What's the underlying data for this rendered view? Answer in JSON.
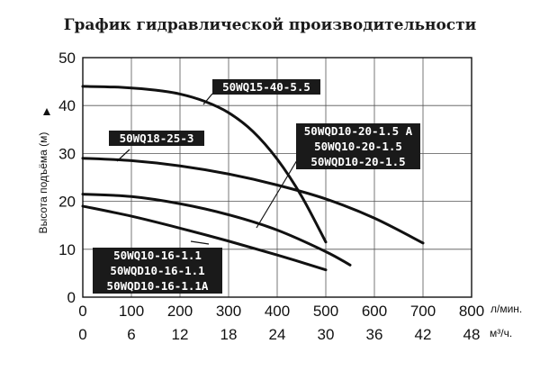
{
  "chart_data": {
    "type": "line",
    "title": "График гидравлической производительности",
    "ylabel": "Высота подъёма (м)",
    "xlabel_primary": "л/мин.",
    "xlabel_secondary": "м³/ч.",
    "xlim": [
      0,
      800
    ],
    "ylim": [
      0,
      50
    ],
    "grid": true,
    "x_ticks_primary": [
      "0",
      "100",
      "200",
      "300",
      "400",
      "500",
      "600",
      "700",
      "800"
    ],
    "x_ticks_secondary": [
      "0",
      "6",
      "12",
      "18",
      "24",
      "30",
      "36",
      "42",
      "48"
    ],
    "y_ticks": [
      "0",
      "10",
      "20",
      "30",
      "40",
      "50"
    ],
    "series": [
      {
        "name": "50WQ15-40-5.5",
        "x": [
          0,
          80,
          150,
          200,
          250,
          300,
          350,
          400,
          450,
          500
        ],
        "y": [
          44,
          43.8,
          43.2,
          42.4,
          40.9,
          38.5,
          34.6,
          28.8,
          21.1,
          11.5
        ]
      },
      {
        "name": "50WQ18-25-3",
        "x": [
          0,
          100,
          200,
          300,
          400,
          500,
          600,
          700
        ],
        "y": [
          29,
          28.5,
          27.4,
          25.7,
          23.4,
          20.5,
          16.5,
          11.3
        ]
      },
      {
        "name": "50WQD10-20-1.5A / 50WQ10-20-1.5 / 50WQD10-20-1.5",
        "x": [
          0,
          100,
          200,
          300,
          400,
          500,
          550
        ],
        "y": [
          21.5,
          21,
          19.5,
          17.2,
          14,
          9.5,
          6.7
        ]
      },
      {
        "name": "50WQ10-16-1.1 / 50WQD10-16-1.1 / 50WQD10-16-1.1A",
        "x": [
          0,
          100,
          200,
          300,
          400,
          500
        ],
        "y": [
          19,
          16.9,
          14.4,
          11.7,
          8.8,
          5.7
        ]
      }
    ],
    "labels": [
      {
        "lines": [
          "50WQ15-40-5.5"
        ]
      },
      {
        "lines": [
          "50WQ18-25-3"
        ]
      },
      {
        "lines": [
          "50WQD10-20-1.5 A",
          "50WQ10-20-1.5",
          "50WQD10-20-1.5"
        ]
      },
      {
        "lines": [
          "50WQ10-16-1.1",
          "50WQD10-16-1.1",
          "50WQD10-16-1.1A"
        ]
      }
    ]
  }
}
